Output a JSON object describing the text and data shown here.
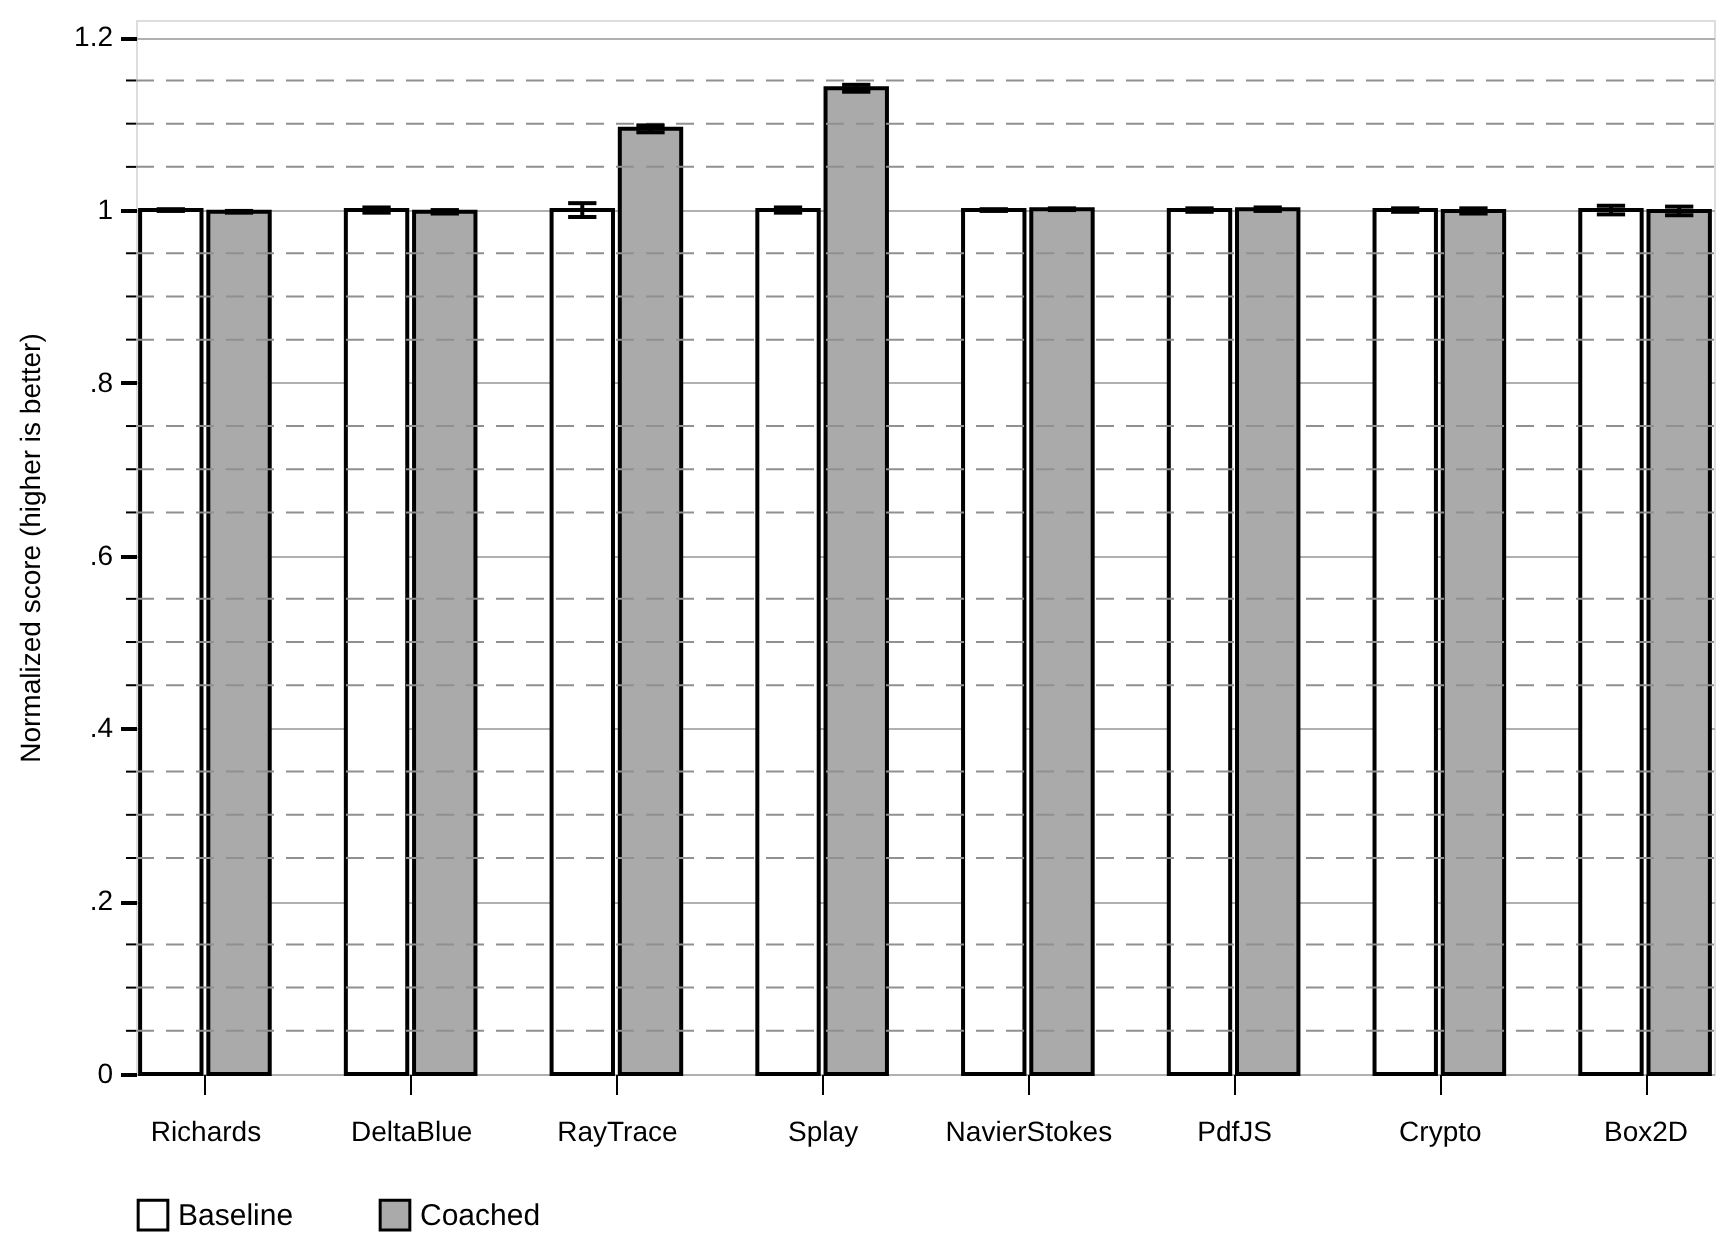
{
  "chart_data": {
    "type": "bar",
    "ylabel": "Normalized score (higher is better)",
    "categories": [
      "Richards",
      "DeltaBlue",
      "RayTrace",
      "Splay",
      "NavierStokes",
      "PdfJS",
      "Crypto",
      "Box2D"
    ],
    "series": [
      {
        "name": "Baseline",
        "color": "#ffffff",
        "values": [
          1,
          1,
          1,
          1,
          1,
          1,
          1,
          1
        ],
        "errors": [
          0.001,
          0.003,
          0.008,
          0.003,
          0.001,
          0.002,
          0.002,
          0.005
        ]
      },
      {
        "name": "Coached",
        "color": "#aaaaaa",
        "values": [
          0.998,
          0.998,
          1.094,
          1.141,
          1.001,
          1.001,
          0.999,
          0.999
        ],
        "errors": [
          0.001,
          0.002,
          0.004,
          0.004,
          0.001,
          0.002,
          0.003,
          0.005
        ]
      }
    ],
    "ylim": [
      0,
      1.22
    ],
    "yticks": [
      0,
      {
        "value": 0.05,
        "label": null
      },
      {
        "value": 0.1,
        "label": null
      },
      {
        "value": 0.15,
        "label": null
      },
      {
        "value": 0.2,
        "label": ".2"
      },
      {
        "value": 0.25,
        "label": null
      },
      {
        "value": 0.3,
        "label": null
      },
      {
        "value": 0.35,
        "label": null
      },
      {
        "value": 0.4,
        "label": ".4"
      },
      {
        "value": 0.45,
        "label": null
      },
      {
        "value": 0.5,
        "label": null
      },
      {
        "value": 0.55,
        "label": null
      },
      {
        "value": 0.6,
        "label": ".6"
      },
      {
        "value": 0.65,
        "label": null
      },
      {
        "value": 0.7,
        "label": null
      },
      {
        "value": 0.75,
        "label": null
      },
      {
        "value": 0.8,
        "label": ".8"
      },
      {
        "value": 0.85,
        "label": null
      },
      {
        "value": 0.9,
        "label": null
      },
      {
        "value": 0.95,
        "label": null
      },
      1,
      {
        "value": 1.05,
        "label": null
      },
      {
        "value": 1.1,
        "label": null
      },
      {
        "value": 1.15,
        "label": null
      },
      1.2
    ],
    "grid": "y",
    "legend": "bottom"
  }
}
